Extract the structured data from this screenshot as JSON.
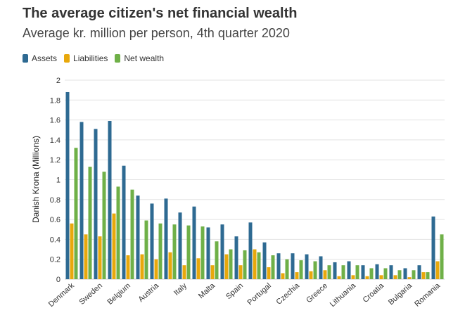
{
  "header": {
    "title": "The average citizen's net financial wealth",
    "subtitle": "Average kr. million per person, 4th quarter 2020"
  },
  "legend": [
    {
      "label": "Assets",
      "color": "#2e6a92"
    },
    {
      "label": "Liabilities",
      "color": "#e8a80c"
    },
    {
      "label": "Net wealth",
      "color": "#6fb048"
    }
  ],
  "chart_data": {
    "type": "bar",
    "ylabel": "Danish Krona (Millions)",
    "xlabel": "",
    "ylim": [
      0,
      2
    ],
    "yticks": [
      "0",
      "0.2",
      "0.4",
      "0.6",
      "0.8",
      "1",
      "1.2",
      "1.4",
      "1.6",
      "1.8",
      "2"
    ],
    "grid": true,
    "legend_position": "top-left",
    "categories": [
      "Denmark",
      "",
      "Sweden",
      "",
      "Belgium",
      "",
      "Austria",
      "",
      "Italy",
      "",
      "Malta",
      "",
      "Spain",
      "",
      "Portugal",
      "",
      "Czechia",
      "",
      "Greece",
      "",
      "Lithuania",
      "",
      "Croatia",
      "",
      "Bulgaria",
      "",
      "Romania"
    ],
    "series": [
      {
        "name": "Assets",
        "color": "#2e6a92",
        "values": [
          1.88,
          1.58,
          1.51,
          1.59,
          1.14,
          0.84,
          0.76,
          0.81,
          0.67,
          0.73,
          0.52,
          0.55,
          0.43,
          0.57,
          0.37,
          0.26,
          0.26,
          0.25,
          0.23,
          0.17,
          0.18,
          0.14,
          0.15,
          0.14,
          0.11,
          0.14,
          0.63
        ]
      },
      {
        "name": "Liabilities",
        "color": "#e8a80c",
        "values": [
          0.56,
          0.45,
          0.43,
          0.66,
          0.24,
          0.25,
          0.2,
          0.27,
          0.14,
          0.21,
          0.14,
          0.25,
          0.14,
          0.3,
          0.12,
          0.06,
          0.07,
          0.08,
          0.09,
          0.03,
          0.04,
          0.03,
          0.04,
          0.04,
          0.02,
          0.07,
          0.18
        ]
      },
      {
        "name": "Net wealth",
        "color": "#6fb048",
        "values": [
          1.32,
          1.13,
          1.08,
          0.93,
          0.9,
          0.59,
          0.56,
          0.55,
          0.54,
          0.53,
          0.38,
          0.3,
          0.29,
          0.27,
          0.24,
          0.2,
          0.19,
          0.18,
          0.14,
          0.14,
          0.14,
          0.11,
          0.11,
          0.09,
          0.09,
          0.07,
          0.45
        ]
      }
    ]
  }
}
